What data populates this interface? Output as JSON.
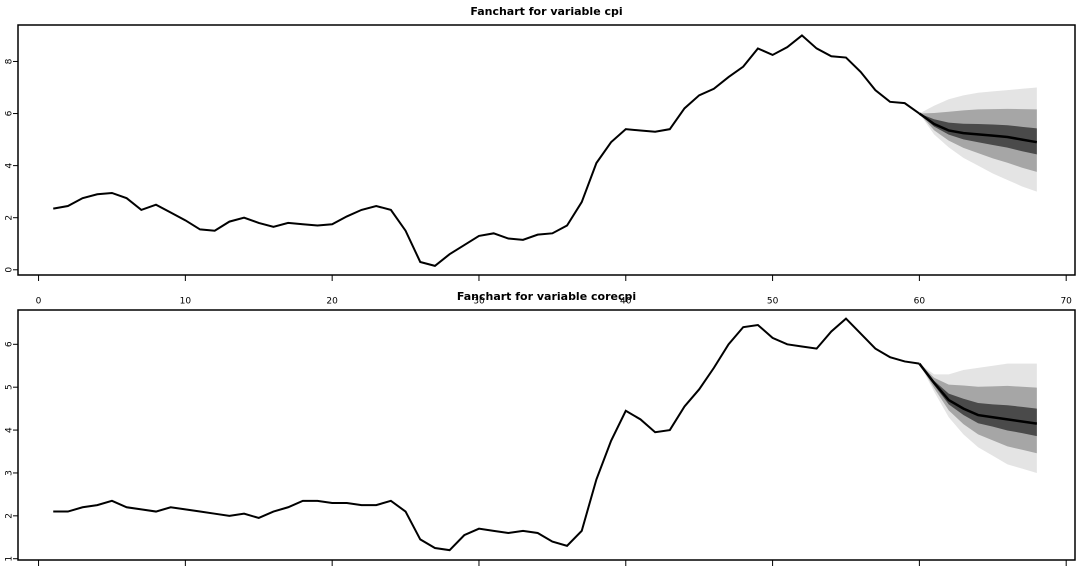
{
  "chart_data": [
    {
      "type": "fan",
      "title": "Fanchart for variable cpi",
      "x": [
        1,
        2,
        3,
        4,
        5,
        6,
        7,
        8,
        9,
        10,
        11,
        12,
        13,
        14,
        15,
        16,
        17,
        18,
        19,
        20,
        21,
        22,
        23,
        24,
        25,
        26,
        27,
        28,
        29,
        30,
        31,
        32,
        33,
        34,
        35,
        36,
        37,
        38,
        39,
        40,
        41,
        42,
        43,
        44,
        45,
        46,
        47,
        48,
        49,
        50,
        51,
        52,
        53,
        54,
        55,
        56,
        57,
        58,
        59,
        60
      ],
      "values": [
        2.35,
        2.45,
        2.75,
        2.9,
        2.95,
        2.75,
        2.3,
        2.5,
        2.2,
        1.9,
        1.55,
        1.5,
        1.85,
        2.0,
        1.8,
        1.65,
        1.8,
        1.75,
        1.7,
        1.75,
        2.05,
        2.3,
        2.45,
        2.3,
        1.5,
        0.3,
        0.15,
        0.6,
        0.95,
        1.3,
        1.4,
        1.2,
        1.15,
        1.35,
        1.4,
        1.7,
        2.6,
        4.1,
        4.9,
        5.4,
        5.35,
        5.3,
        5.4,
        6.2,
        6.7,
        6.95,
        7.4,
        7.8,
        8.5,
        8.25,
        8.55,
        9.0,
        8.5,
        8.2,
        8.15,
        7.6,
        6.9,
        6.45,
        6.4,
        6.0
      ],
      "color": "#000000",
      "fan": {
        "x": [
          60,
          61,
          62,
          63,
          64,
          65,
          66,
          67,
          68
        ],
        "median": [
          6.0,
          5.6,
          5.35,
          5.25,
          5.2,
          5.15,
          5.1,
          5.0,
          4.9
        ],
        "bands": [
          {
            "color": "#e4e4e4",
            "lower": [
              6.0,
              5.2,
              4.7,
              4.3,
              4.0,
              3.7,
              3.45,
              3.2,
              3.0
            ],
            "upper": [
              6.0,
              6.3,
              6.55,
              6.7,
              6.8,
              6.85,
              6.9,
              6.95,
              7.0
            ]
          },
          {
            "color": "#a6a6a6",
            "lower": [
              6.0,
              5.36,
              4.96,
              4.68,
              4.48,
              4.28,
              4.11,
              3.92,
              3.76
            ],
            "upper": [
              6.0,
              6.02,
              6.07,
              6.12,
              6.16,
              6.17,
              6.18,
              6.17,
              6.16
            ]
          },
          {
            "color": "#4a4a4a",
            "lower": [
              6.0,
              5.5,
              5.19,
              5.01,
              4.9,
              4.79,
              4.69,
              4.55,
              4.43
            ],
            "upper": [
              6.0,
              5.78,
              5.65,
              5.61,
              5.6,
              5.58,
              5.55,
              5.49,
              5.43
            ]
          }
        ]
      },
      "xlim": [
        -1.4,
        70.6
      ],
      "xticks": [
        0,
        10,
        20,
        30,
        40,
        50,
        60,
        70
      ],
      "xtick_labels": true,
      "ylim": [
        -0.2,
        9.4
      ],
      "yticks": [
        0,
        2,
        4,
        6,
        8
      ]
    },
    {
      "type": "fan",
      "title": "Fanchart for variable corecpi",
      "x": [
        1,
        2,
        3,
        4,
        5,
        6,
        7,
        8,
        9,
        10,
        11,
        12,
        13,
        14,
        15,
        16,
        17,
        18,
        19,
        20,
        21,
        22,
        23,
        24,
        25,
        26,
        27,
        28,
        29,
        30,
        31,
        32,
        33,
        34,
        35,
        36,
        37,
        38,
        39,
        40,
        41,
        42,
        43,
        44,
        45,
        46,
        47,
        48,
        49,
        50,
        51,
        52,
        53,
        54,
        55,
        56,
        57,
        58,
        59,
        60
      ],
      "values": [
        2.1,
        2.1,
        2.2,
        2.25,
        2.35,
        2.2,
        2.15,
        2.1,
        2.2,
        2.15,
        2.1,
        2.05,
        2.0,
        2.05,
        1.95,
        2.1,
        2.2,
        2.35,
        2.35,
        2.3,
        2.3,
        2.25,
        2.25,
        2.35,
        2.1,
        1.45,
        1.25,
        1.2,
        1.55,
        1.7,
        1.65,
        1.6,
        1.65,
        1.6,
        1.4,
        1.3,
        1.65,
        2.85,
        3.75,
        4.45,
        4.25,
        3.95,
        4.0,
        4.55,
        4.95,
        5.45,
        6.0,
        6.4,
        6.45,
        6.15,
        6.0,
        5.95,
        5.9,
        6.3,
        6.6,
        6.25,
        5.9,
        5.7,
        5.6,
        5.55
      ],
      "color": "#000000",
      "fan": {
        "x": [
          60,
          61,
          62,
          63,
          64,
          65,
          66,
          67,
          68
        ],
        "median": [
          5.55,
          5.1,
          4.7,
          4.5,
          4.35,
          4.3,
          4.25,
          4.2,
          4.15
        ],
        "bands": [
          {
            "color": "#e4e4e4",
            "lower": [
              5.55,
              4.9,
              4.3,
              3.9,
              3.6,
              3.4,
              3.2,
              3.1,
              3.0
            ],
            "upper": [
              5.55,
              5.3,
              5.3,
              5.4,
              5.45,
              5.5,
              5.55,
              5.55,
              5.55
            ]
          },
          {
            "color": "#a6a6a6",
            "lower": [
              5.55,
              4.98,
              4.46,
              4.14,
              3.9,
              3.76,
              3.62,
              3.54,
              3.46
            ],
            "upper": [
              5.55,
              5.22,
              5.06,
              5.04,
              5.01,
              5.02,
              5.03,
              5.01,
              4.99
            ]
          },
          {
            "color": "#4a4a4a",
            "lower": [
              5.55,
              5.05,
              4.6,
              4.35,
              4.16,
              4.08,
              3.99,
              3.93,
              3.86
            ],
            "upper": [
              5.55,
              5.15,
              4.85,
              4.73,
              4.63,
              4.6,
              4.58,
              4.54,
              4.5
            ]
          }
        ]
      },
      "xlim": [
        -1.4,
        70.6
      ],
      "xticks": [
        0,
        10,
        20,
        30,
        40,
        50,
        60,
        70
      ],
      "xtick_labels": false,
      "ylim": [
        0.97,
        6.8
      ],
      "yticks": [
        1,
        2,
        3,
        4,
        5,
        6
      ]
    }
  ]
}
